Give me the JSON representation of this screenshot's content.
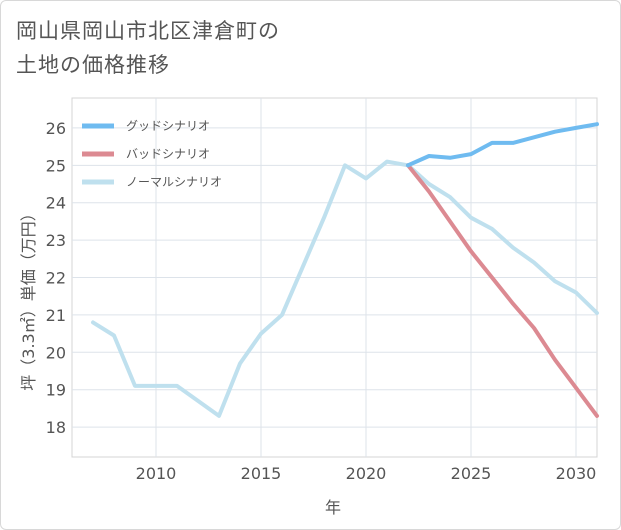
{
  "title_lines": [
    "岡山県岡山市北区津倉町の",
    "土地の価格推移"
  ],
  "chart_data": {
    "type": "line",
    "title": "岡山県岡山市北区津倉町の土地の価格推移",
    "xlabel": "年",
    "ylabel": "坪（3.3㎡）単価（万円）",
    "xlim": [
      2006,
      2031
    ],
    "ylim": [
      17.2,
      26.8
    ],
    "xticks": [
      2010,
      2015,
      2020,
      2025,
      2030
    ],
    "yticks": [
      18,
      19,
      20,
      21,
      22,
      23,
      24,
      25,
      26
    ],
    "grid": true,
    "legend_position": "top-left",
    "series": [
      {
        "name": "グッドシナリオ",
        "color": "#6fbbf0",
        "x": [
          2022,
          2023,
          2024,
          2025,
          2026,
          2027,
          2028,
          2029,
          2030,
          2031
        ],
        "values": [
          25.0,
          25.25,
          25.2,
          25.3,
          25.6,
          25.6,
          25.75,
          25.9,
          26.0,
          26.1
        ]
      },
      {
        "name": "バッドシナリオ",
        "color": "#dc8a92",
        "x": [
          2022,
          2023,
          2024,
          2025,
          2026,
          2027,
          2028,
          2029,
          2030,
          2031
        ],
        "values": [
          25.0,
          24.3,
          23.5,
          22.7,
          22.0,
          21.3,
          20.65,
          19.8,
          19.05,
          18.3
        ]
      },
      {
        "name": "ノーマルシナリオ",
        "color": "#bfe0ee",
        "x": [
          2007,
          2008,
          2009,
          2010,
          2011,
          2012,
          2013,
          2014,
          2015,
          2016,
          2017,
          2018,
          2019,
          2020,
          2021,
          2022,
          2023,
          2024,
          2025,
          2026,
          2027,
          2028,
          2029,
          2030,
          2031
        ],
        "values": [
          20.8,
          20.45,
          19.1,
          19.1,
          19.1,
          18.7,
          18.3,
          19.7,
          20.5,
          21.0,
          22.3,
          23.6,
          25.0,
          24.65,
          25.1,
          25.0,
          24.5,
          24.15,
          23.6,
          23.3,
          22.8,
          22.4,
          21.9,
          21.6,
          21.05
        ]
      }
    ]
  }
}
